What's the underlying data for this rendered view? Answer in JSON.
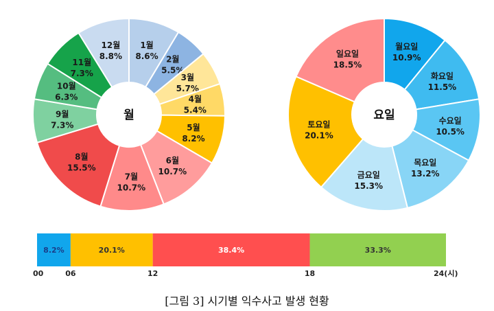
{
  "caption": "[그림 3] 시기별 익수사고 발생 현황",
  "chart_data": [
    {
      "type": "pie",
      "center_label": "월",
      "categories": [
        "1월",
        "2월",
        "3월",
        "4월",
        "5월",
        "6월",
        "7월",
        "8월",
        "9월",
        "10월",
        "11월",
        "12월"
      ],
      "values": [
        8.6,
        5.5,
        5.7,
        5.4,
        8.2,
        10.7,
        10.7,
        15.5,
        7.3,
        6.3,
        7.3,
        8.8
      ],
      "value_labels": [
        "8.6%",
        "5.5%",
        "5.7%",
        "5.4%",
        "8.2%",
        "10.7%",
        "10.7%",
        "15.5%",
        "7.3%",
        "6.3%",
        "7.3%",
        "8.8%"
      ],
      "colors": [
        "#b6cfeb",
        "#8db4e2",
        "#ffe699",
        "#ffd966",
        "#ffc000",
        "#ff9c9c",
        "#ff8a8a",
        "#f04b4b",
        "#7fd1a0",
        "#55bd80",
        "#16a34a",
        "#c9dbf0"
      ]
    },
    {
      "type": "pie",
      "center_label": "요일",
      "categories": [
        "월요일",
        "화요일",
        "수요일",
        "목요일",
        "금요일",
        "토요일",
        "일요일"
      ],
      "values": [
        10.9,
        11.5,
        10.5,
        13.2,
        15.3,
        20.1,
        18.5
      ],
      "value_labels": [
        "10.9%",
        "11.5%",
        "10.5%",
        "13.2%",
        "15.3%",
        "20.1%",
        "18.5%"
      ],
      "colors": [
        "#11a6ec",
        "#3fbbf0",
        "#5ac6f3",
        "#88d5f6",
        "#bce6f9",
        "#ffc000",
        "#ff8c8c"
      ]
    },
    {
      "type": "bar",
      "orientation": "horizontal-stacked",
      "categories": [
        "00-06",
        "06-12",
        "12-18",
        "18-24"
      ],
      "values": [
        8.2,
        20.1,
        38.4,
        33.3
      ],
      "value_labels": [
        "8.2%",
        "20.1%",
        "38.4%",
        "33.3%"
      ],
      "colors": [
        "#11a6ec",
        "#ffc000",
        "#ff4f4f",
        "#92d050"
      ],
      "label_colors": [
        "#1a3e8a",
        "#333333",
        "#ffffff",
        "#333333"
      ],
      "ticks": [
        "00",
        "06",
        "12",
        "18",
        "24(시)"
      ],
      "tick_values": [
        0,
        6,
        12,
        18,
        24
      ]
    }
  ]
}
